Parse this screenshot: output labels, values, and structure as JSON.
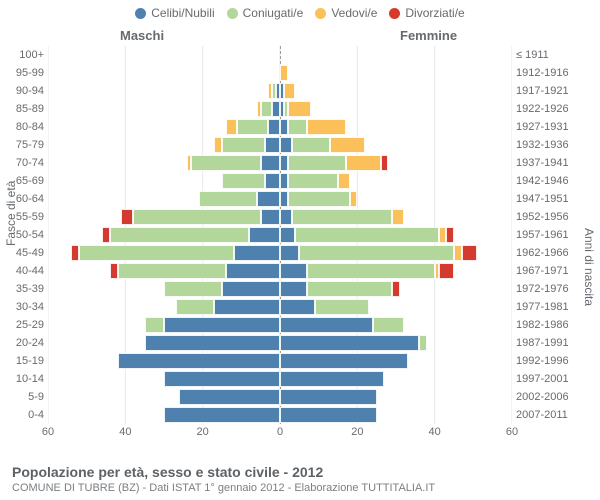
{
  "chart": {
    "type": "population-pyramid",
    "title": "Popolazione per età, sesso e stato civile - 2012",
    "subtitle": "COMUNE DI TUBRE (BZ) - Dati ISTAT 1° gennaio 2012 - Elaborazione TUTTITALIA.IT",
    "left_header": "Maschi",
    "right_header": "Femmine",
    "y_left_title": "Fasce di età",
    "y_right_title": "Anni di nascita",
    "xlim": 60,
    "xtick_step": 20,
    "xticks": [
      60,
      40,
      20,
      0,
      20,
      40,
      60
    ],
    "background_color": "#ffffff",
    "grid_color": "#e6e7e8",
    "centerline_color": "#999ca0",
    "label_color": "#666b6f",
    "legend": [
      {
        "label": "Celibi/Nubili",
        "color": "#4f81af"
      },
      {
        "label": "Coniugati/e",
        "color": "#b3d69b"
      },
      {
        "label": "Vedovi/e",
        "color": "#fbc05a"
      },
      {
        "label": "Divorziati/e",
        "color": "#d53a2f"
      }
    ],
    "series_colors": {
      "single": "#4f81af",
      "married": "#b3d69b",
      "widowed": "#fbc05a",
      "divorced": "#d53a2f"
    },
    "rows": [
      {
        "age": "100+",
        "birth": "≤ 1911",
        "m": {
          "s": 0,
          "m": 0,
          "w": 0,
          "d": 0
        },
        "f": {
          "s": 0,
          "m": 0,
          "w": 0,
          "d": 0
        }
      },
      {
        "age": "95-99",
        "birth": "1912-1916",
        "m": {
          "s": 0,
          "m": 0,
          "w": 0,
          "d": 0
        },
        "f": {
          "s": 0,
          "m": 0,
          "w": 2,
          "d": 0
        }
      },
      {
        "age": "90-94",
        "birth": "1917-1921",
        "m": {
          "s": 1,
          "m": 1,
          "w": 1,
          "d": 0
        },
        "f": {
          "s": 1,
          "m": 0,
          "w": 3,
          "d": 0
        }
      },
      {
        "age": "85-89",
        "birth": "1922-1926",
        "m": {
          "s": 2,
          "m": 3,
          "w": 1,
          "d": 0
        },
        "f": {
          "s": 1,
          "m": 1,
          "w": 6,
          "d": 0
        }
      },
      {
        "age": "80-84",
        "birth": "1927-1931",
        "m": {
          "s": 3,
          "m": 8,
          "w": 3,
          "d": 0
        },
        "f": {
          "s": 2,
          "m": 5,
          "w": 10,
          "d": 0
        }
      },
      {
        "age": "75-79",
        "birth": "1932-1936",
        "m": {
          "s": 4,
          "m": 11,
          "w": 2,
          "d": 0
        },
        "f": {
          "s": 3,
          "m": 10,
          "w": 9,
          "d": 0
        }
      },
      {
        "age": "70-74",
        "birth": "1937-1941",
        "m": {
          "s": 5,
          "m": 18,
          "w": 1,
          "d": 0
        },
        "f": {
          "s": 2,
          "m": 15,
          "w": 9,
          "d": 2
        }
      },
      {
        "age": "65-69",
        "birth": "1942-1946",
        "m": {
          "s": 4,
          "m": 11,
          "w": 0,
          "d": 0
        },
        "f": {
          "s": 2,
          "m": 13,
          "w": 3,
          "d": 0
        }
      },
      {
        "age": "60-64",
        "birth": "1947-1951",
        "m": {
          "s": 6,
          "m": 15,
          "w": 0,
          "d": 0
        },
        "f": {
          "s": 2,
          "m": 16,
          "w": 2,
          "d": 0
        }
      },
      {
        "age": "55-59",
        "birth": "1952-1956",
        "m": {
          "s": 5,
          "m": 33,
          "w": 0,
          "d": 3
        },
        "f": {
          "s": 3,
          "m": 26,
          "w": 3,
          "d": 0
        }
      },
      {
        "age": "50-54",
        "birth": "1957-1961",
        "m": {
          "s": 8,
          "m": 36,
          "w": 0,
          "d": 2
        },
        "f": {
          "s": 4,
          "m": 37,
          "w": 2,
          "d": 2
        }
      },
      {
        "age": "45-49",
        "birth": "1962-1966",
        "m": {
          "s": 12,
          "m": 40,
          "w": 0,
          "d": 2
        },
        "f": {
          "s": 5,
          "m": 40,
          "w": 2,
          "d": 4
        }
      },
      {
        "age": "40-44",
        "birth": "1967-1971",
        "m": {
          "s": 14,
          "m": 28,
          "w": 0,
          "d": 2
        },
        "f": {
          "s": 7,
          "m": 33,
          "w": 1,
          "d": 4
        }
      },
      {
        "age": "35-39",
        "birth": "1972-1976",
        "m": {
          "s": 15,
          "m": 15,
          "w": 0,
          "d": 0
        },
        "f": {
          "s": 7,
          "m": 22,
          "w": 0,
          "d": 2
        }
      },
      {
        "age": "30-34",
        "birth": "1977-1981",
        "m": {
          "s": 17,
          "m": 10,
          "w": 0,
          "d": 0
        },
        "f": {
          "s": 9,
          "m": 14,
          "w": 0,
          "d": 0
        }
      },
      {
        "age": "25-29",
        "birth": "1982-1986",
        "m": {
          "s": 30,
          "m": 5,
          "w": 0,
          "d": 0
        },
        "f": {
          "s": 24,
          "m": 8,
          "w": 0,
          "d": 0
        }
      },
      {
        "age": "20-24",
        "birth": "1987-1991",
        "m": {
          "s": 35,
          "m": 0,
          "w": 0,
          "d": 0
        },
        "f": {
          "s": 36,
          "m": 2,
          "w": 0,
          "d": 0
        }
      },
      {
        "age": "15-19",
        "birth": "1992-1996",
        "m": {
          "s": 42,
          "m": 0,
          "w": 0,
          "d": 0
        },
        "f": {
          "s": 33,
          "m": 0,
          "w": 0,
          "d": 0
        }
      },
      {
        "age": "10-14",
        "birth": "1997-2001",
        "m": {
          "s": 30,
          "m": 0,
          "w": 0,
          "d": 0
        },
        "f": {
          "s": 27,
          "m": 0,
          "w": 0,
          "d": 0
        }
      },
      {
        "age": "5-9",
        "birth": "2002-2006",
        "m": {
          "s": 26,
          "m": 0,
          "w": 0,
          "d": 0
        },
        "f": {
          "s": 25,
          "m": 0,
          "w": 0,
          "d": 0
        }
      },
      {
        "age": "0-4",
        "birth": "2007-2011",
        "m": {
          "s": 30,
          "m": 0,
          "w": 0,
          "d": 0
        },
        "f": {
          "s": 25,
          "m": 0,
          "w": 0,
          "d": 0
        }
      }
    ]
  }
}
